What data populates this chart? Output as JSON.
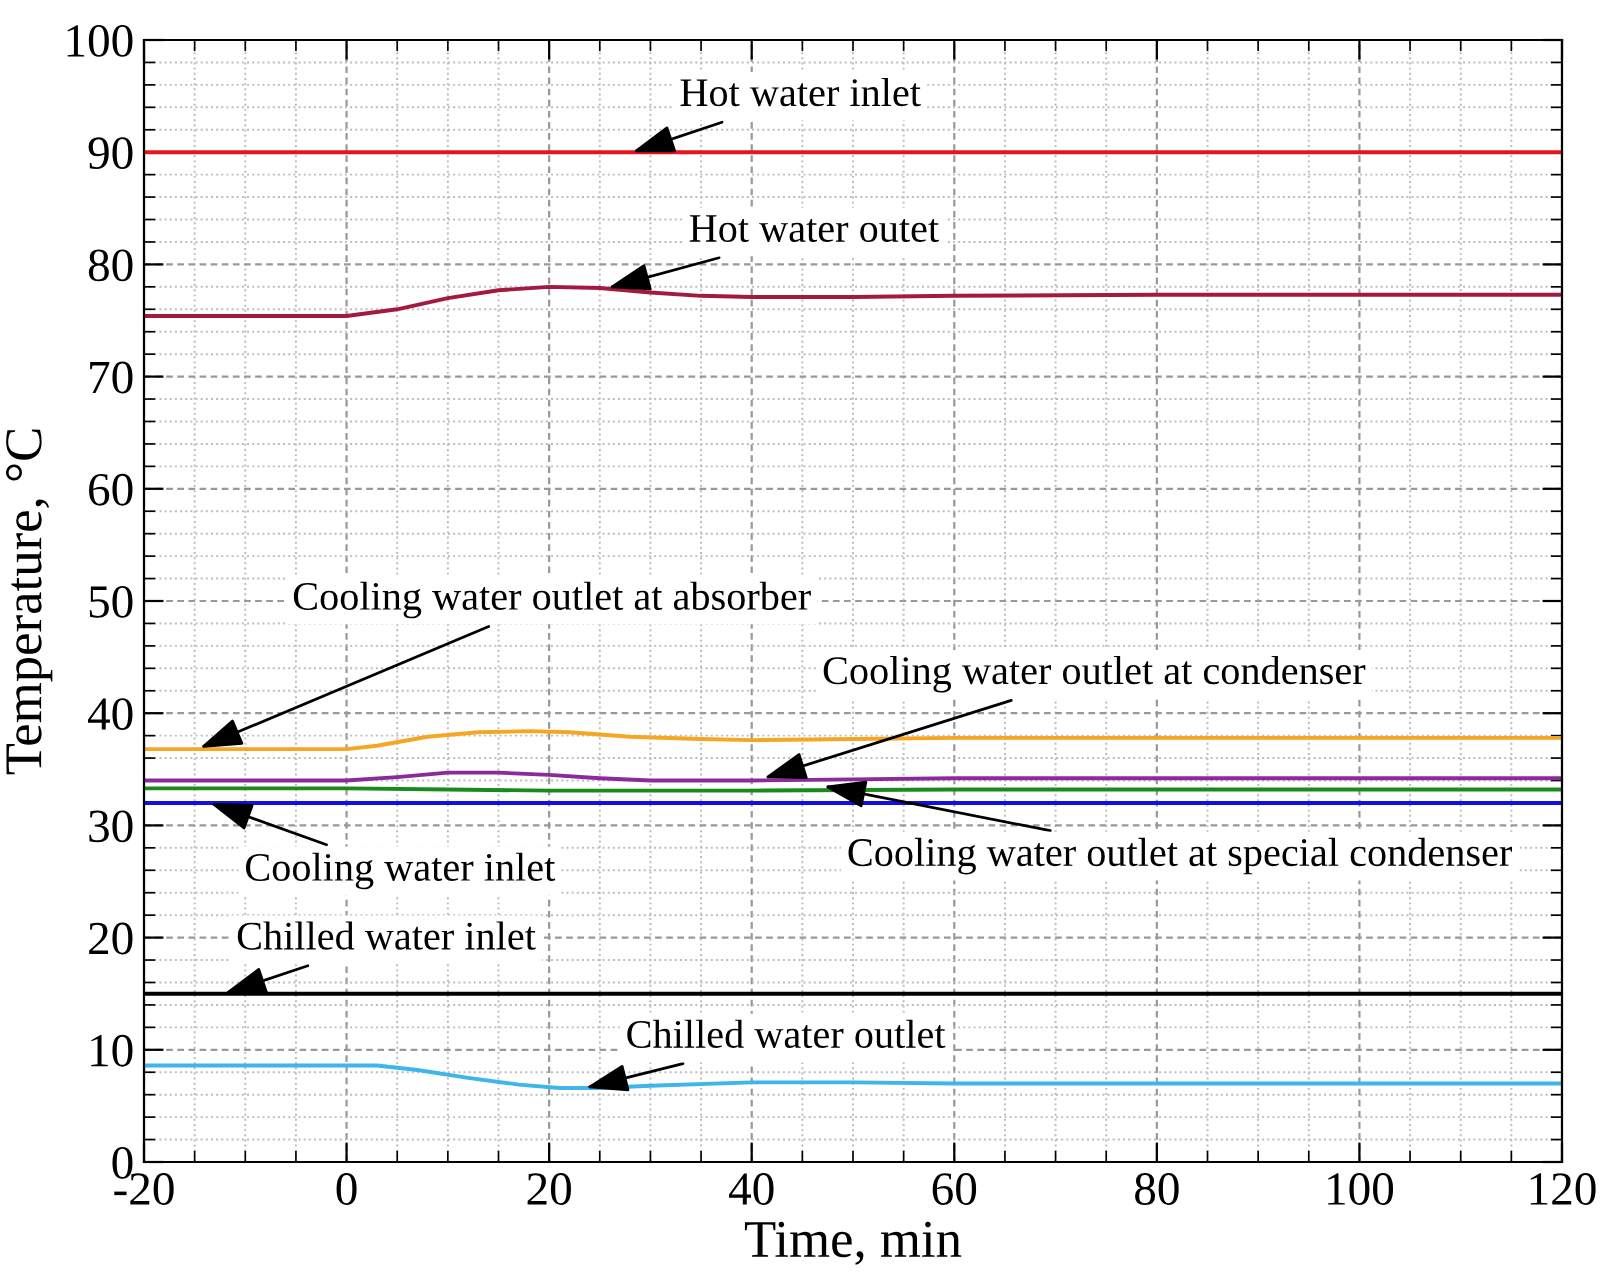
{
  "chart_data": {
    "type": "line",
    "xlabel": "Time, min",
    "ylabel": "Temperature, °C",
    "xlim": [
      -20,
      120
    ],
    "xticks": [
      -20,
      0,
      20,
      40,
      60,
      80,
      100,
      120
    ],
    "ylim": [
      0,
      100
    ],
    "yticks": [
      0,
      10,
      20,
      30,
      40,
      50,
      60,
      70,
      80,
      90,
      100
    ],
    "grid": true,
    "marker": "none",
    "line_style": "solid",
    "legend": false,
    "series": [
      {
        "color": "#e8141c",
        "x": [
          -20,
          120
        ],
        "values": [
          90,
          90
        ]
      },
      {
        "color": "#a31a40",
        "x": [
          -20,
          0,
          5,
          10,
          15,
          20,
          25,
          30,
          35,
          40,
          50,
          60,
          80,
          100,
          120
        ],
        "values": [
          75.4,
          75.4,
          76.0,
          77.0,
          77.7,
          78.0,
          77.9,
          77.5,
          77.2,
          77.1,
          77.1,
          77.2,
          77.3,
          77.3,
          77.3
        ]
      },
      {
        "color": "#f5a623",
        "x": [
          -20,
          0,
          3,
          8,
          13,
          18,
          22,
          28,
          35,
          40,
          50,
          60,
          80,
          120
        ],
        "values": [
          36.8,
          36.8,
          37.1,
          37.9,
          38.3,
          38.4,
          38.3,
          37.9,
          37.7,
          37.6,
          37.7,
          37.8,
          37.8,
          37.8
        ]
      },
      {
        "color": "#8b2a9b",
        "x": [
          -20,
          0,
          5,
          10,
          15,
          20,
          25,
          30,
          40,
          50,
          60,
          80,
          120
        ],
        "values": [
          34.0,
          34.0,
          34.3,
          34.7,
          34.7,
          34.5,
          34.2,
          34.0,
          34.0,
          34.1,
          34.2,
          34.2,
          34.2
        ]
      },
      {
        "color": "#1a8a1a",
        "x": [
          -20,
          0,
          10,
          20,
          40,
          60,
          120
        ],
        "values": [
          33.3,
          33.3,
          33.2,
          33.1,
          33.1,
          33.2,
          33.2
        ]
      },
      {
        "color": "#1010e0",
        "x": [
          -20,
          120
        ],
        "values": [
          32,
          32
        ]
      },
      {
        "color": "#000000",
        "x": [
          -20,
          120
        ],
        "values": [
          15,
          15
        ]
      },
      {
        "color": "#3fb6ea",
        "x": [
          -20,
          0,
          3,
          7,
          12,
          17,
          21,
          25,
          30,
          40,
          50,
          60,
          80,
          120
        ],
        "values": [
          8.6,
          8.6,
          8.6,
          8.2,
          7.5,
          6.9,
          6.6,
          6.6,
          6.8,
          7.1,
          7.1,
          7.0,
          7.0,
          7.0
        ]
      }
    ],
    "annotations": [
      {
        "text": "Hot water inlet",
        "x": 28.2,
        "y": 90
      },
      {
        "text": "Hot water outet",
        "x": 25.8,
        "y": 77.9
      },
      {
        "text": "Cooling water outlet at absorber",
        "x": -14.5,
        "y": 36.9
      },
      {
        "text": "Cooling water outlet at condenser",
        "x": 41.2,
        "y": 34.2
      },
      {
        "text": "Cooling water outlet at special condenser",
        "x": 47.1,
        "y": 33.5
      },
      {
        "text": "Cooling water inlet",
        "x": -13.5,
        "y": 32
      },
      {
        "text": "Chilled water inlet",
        "x": -12.1,
        "y": 15
      },
      {
        "text": "Chilled water outlet",
        "x": 23.6,
        "y": 6.6
      }
    ]
  }
}
